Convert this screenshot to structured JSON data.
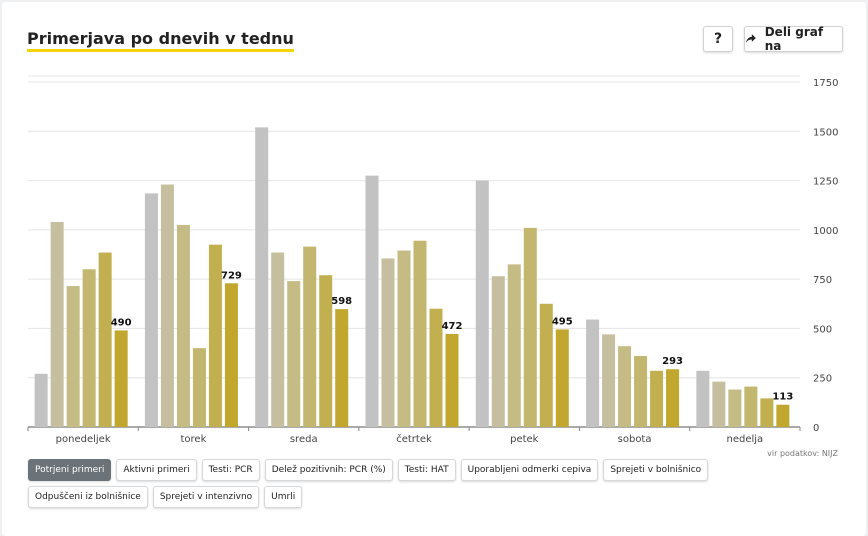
{
  "title": "Primerjava po dnevih v tednu",
  "help_label": "?",
  "share_label": "Deli graf na",
  "source": "vir podatkov: NIJZ",
  "filters": [
    {
      "label": "Potrjeni primeri",
      "active": true
    },
    {
      "label": "Aktivni primeri",
      "active": false
    },
    {
      "label": "Testi: PCR",
      "active": false
    },
    {
      "label": "Delež pozitivnih: PCR (%)",
      "active": false
    },
    {
      "label": "Testi: HAT",
      "active": false
    },
    {
      "label": "Uporabljeni odmerki cepiva",
      "active": false
    },
    {
      "label": "Sprejeti v bolnišnico",
      "active": false
    },
    {
      "label": "Odpuščeni iz bolnišnice",
      "active": false
    },
    {
      "label": "Sprejeti v intenzivno",
      "active": false
    },
    {
      "label": "Umrli",
      "active": false
    }
  ],
  "chart_data": {
    "type": "bar",
    "categories": [
      "ponedeljek",
      "torek",
      "sreda",
      "četrtek",
      "petek",
      "sobota",
      "nedelja"
    ],
    "series": [
      {
        "color": "#c2c2c2",
        "values": [
          270,
          1185,
          1520,
          1275,
          1250,
          545,
          285
        ]
      },
      {
        "color": "#c6bf9f",
        "values": [
          1040,
          1230,
          885,
          855,
          765,
          470,
          230
        ]
      },
      {
        "color": "#c5bb85",
        "values": [
          715,
          1025,
          740,
          895,
          825,
          410,
          190
        ]
      },
      {
        "color": "#c3b66e",
        "values": [
          800,
          400,
          915,
          945,
          1010,
          360,
          205
        ]
      },
      {
        "color": "#c2b050",
        "values": [
          885,
          925,
          770,
          600,
          625,
          285,
          145
        ]
      },
      {
        "color": "#c1a72e",
        "values": [
          490,
          729,
          598,
          472,
          495,
          293,
          113
        ]
      }
    ],
    "labeled_series_index": 5,
    "yticks": [
      0,
      250,
      500,
      750,
      1000,
      1250,
      1500,
      1750
    ],
    "ylim": [
      0,
      1750
    ],
    "grid": true
  }
}
